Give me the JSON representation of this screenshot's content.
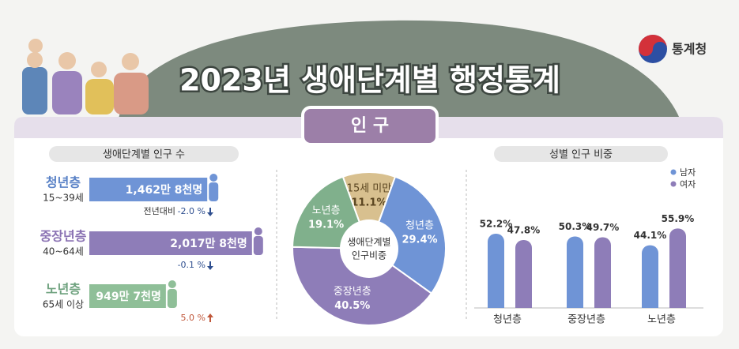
{
  "header": {
    "title": "2023년 생애단계별 행정통계",
    "logo": "통계청",
    "tab": "인 구"
  },
  "chart_data": [
    {
      "type": "hbar",
      "title": "생애단계별 인구 수",
      "categories": [
        "청년층",
        "중장년층",
        "노년층"
      ],
      "ranges": [
        "15~39세",
        "40~64세",
        "65세 이상"
      ],
      "values": [
        14628,
        20178,
        9497
      ],
      "value_labels": [
        "1,462만 8천명",
        "2,017만 8천명",
        "949만 7천명"
      ],
      "colors": [
        "#6f94d6",
        "#8e7db8",
        "#8fbf98"
      ],
      "label_colors": [
        "#5b83c7",
        "#8a72b3",
        "#6fa27f"
      ],
      "change_label": "전년대비",
      "changes": [
        -2.0,
        -0.1,
        5.0
      ],
      "change_labels": [
        "-2.0 %",
        "-0.1 %",
        "5.0 %"
      ]
    },
    {
      "type": "donut",
      "center_text": [
        "생애단계별",
        "인구비중"
      ],
      "categories": [
        "15세 미만",
        "청년층",
        "중장년층",
        "노년층"
      ],
      "values": [
        11.1,
        29.4,
        40.5,
        19.1
      ],
      "value_labels": [
        "11.1%",
        "29.4%",
        "40.5%",
        "19.1%"
      ],
      "colors": [
        "#d8c08f",
        "#6f94d6",
        "#8e7db8",
        "#80b08c"
      ]
    },
    {
      "type": "grouped-bar",
      "title": "성별 인구 비중",
      "categories": [
        "청년층",
        "중장년층",
        "노년층"
      ],
      "series": [
        {
          "name": "남자",
          "color": "#6f94d6",
          "values": [
            52.2,
            50.3,
            44.1
          ],
          "value_labels": [
            "52.2%",
            "50.3%",
            "44.1%"
          ]
        },
        {
          "name": "여자",
          "color": "#8e7db8",
          "values": [
            47.8,
            49.7,
            55.9
          ],
          "value_labels": [
            "47.8%",
            "49.7%",
            "55.9%"
          ]
        }
      ]
    }
  ]
}
